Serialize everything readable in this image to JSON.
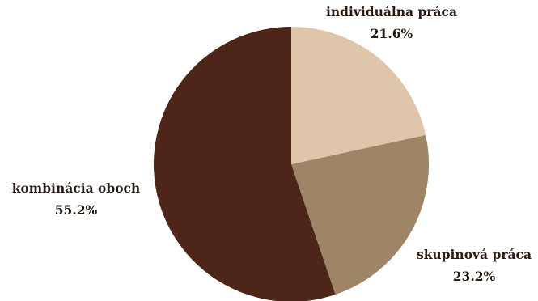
{
  "chart_data": {
    "type": "pie",
    "title": "",
    "slices": [
      {
        "label": "individuálna práca",
        "value": 21.6,
        "value_label": "21.6%",
        "color": "#dfc5aa"
      },
      {
        "label": "skupinová práca",
        "value": 23.2,
        "value_label": "23.2%",
        "color": "#9e8566"
      },
      {
        "label": "kombinácia oboch",
        "value": 55.2,
        "value_label": "55.2%",
        "color": "#4e2619"
      }
    ],
    "start_angle": "12 o'clock",
    "direction": "clockwise",
    "legend": "none"
  }
}
